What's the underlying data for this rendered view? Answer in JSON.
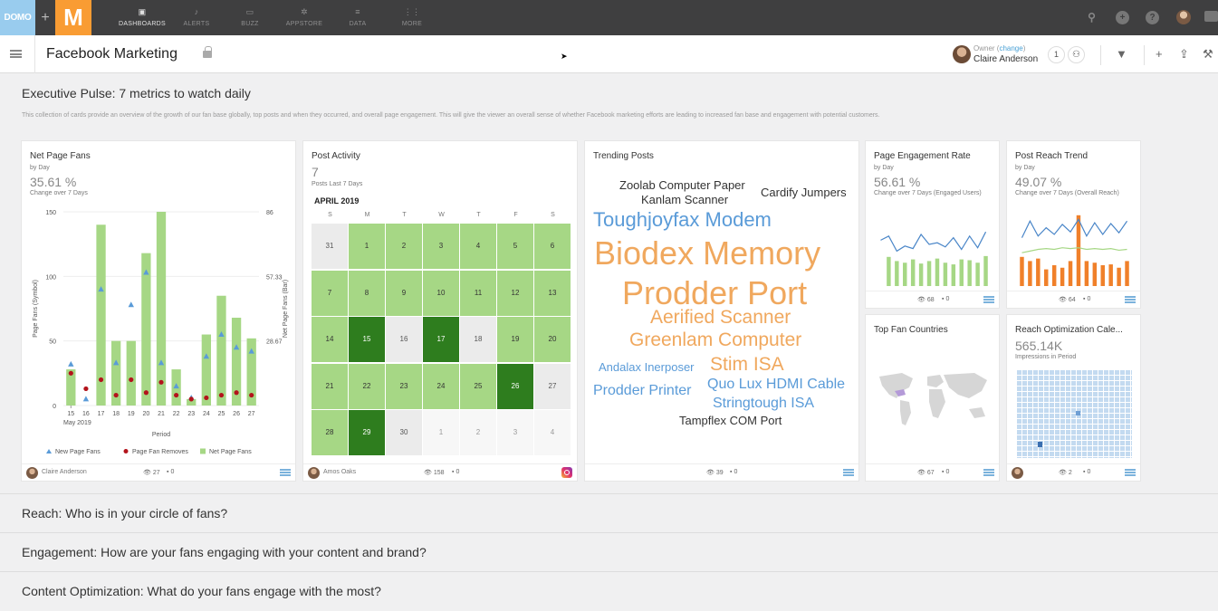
{
  "topnav": {
    "logo_text": "DOMO",
    "logo_m": "M",
    "items": [
      {
        "label": "DASHBOARDS",
        "icon": "dashboards-icon"
      },
      {
        "label": "ALERTS",
        "icon": "bell-icon"
      },
      {
        "label": "BUZZ",
        "icon": "chat-icon"
      },
      {
        "label": "APPSTORE",
        "icon": "appstore-icon"
      },
      {
        "label": "DATA",
        "icon": "database-icon"
      },
      {
        "label": "MORE",
        "icon": "grid-icon"
      }
    ]
  },
  "pagebar": {
    "title": "Facebook Marketing",
    "owner_label": "Owner",
    "owner_change": "change",
    "owner_name": "Claire Anderson",
    "share_count": "1"
  },
  "exec": {
    "title": "Executive Pulse: 7 metrics to watch daily",
    "description": "This collection of cards provide an overview of the growth of our fan base globally, top posts and when they occurred, and overall page engagement. This will give the viewer an overall sense of whether Facebook marketing efforts are leading to increased fan base and engagement with potential customers."
  },
  "cards": {
    "net_fans": {
      "title": "Net Page Fans",
      "sub": "by Day",
      "value": "35.61 %",
      "change": "Change over 7 Days",
      "owner": "Claire Anderson",
      "views": "27",
      "comments": "0"
    },
    "post_activity": {
      "title": "Post Activity",
      "value": "7",
      "sub": "Posts Last 7 Days",
      "owner": "Amos Oaks",
      "views": "158",
      "comments": "0"
    },
    "trending": {
      "title": "Trending Posts",
      "views": "39",
      "comments": "0"
    },
    "engagement": {
      "title": "Page Engagement Rate",
      "sub": "by Day",
      "value": "56.61 %",
      "change": "Change over 7 Days (Engaged Users)",
      "views": "68",
      "comments": "0"
    },
    "reach": {
      "title": "Post Reach Trend",
      "sub": "by Day",
      "value": "49.07 %",
      "change": "Change over 7 Days (Overall Reach)",
      "views": "64",
      "comments": "0"
    },
    "countries": {
      "title": "Top Fan Countries",
      "views": "67",
      "comments": "0"
    },
    "reach_cal": {
      "title": "Reach Optimization Cale...",
      "value": "565.14K",
      "sub": "Impressions in Period",
      "views": "2",
      "comments": "0"
    }
  },
  "chart_data": [
    {
      "type": "bar",
      "name_card": "Net Page Fans",
      "categories": [
        "15",
        "16",
        "17",
        "18",
        "19",
        "20",
        "21",
        "22",
        "23",
        "24",
        "25",
        "26",
        "27"
      ],
      "xlabel": "Period",
      "x_sublabel": "May 2019",
      "ylabel_left": "Page Fans (Symbol)",
      "ylabel_right": "Net Page Fans (Bar)",
      "yticks_left": [
        "0",
        "50",
        "100",
        "150"
      ],
      "yticks_right": [
        "28.67",
        "57.33",
        "86"
      ],
      "ylim": [
        0,
        150
      ],
      "series": [
        {
          "name": "Net Page Fans",
          "kind": "bar",
          "values": [
            28,
            0,
            140,
            50,
            50,
            118,
            150,
            28,
            5,
            55,
            85,
            68,
            52
          ]
        },
        {
          "name": "New Page Fans",
          "kind": "triangle",
          "values": [
            32,
            5,
            90,
            33,
            78,
            103,
            33,
            15,
            6,
            38,
            55,
            45,
            42
          ]
        },
        {
          "name": "Page Fan Removes",
          "kind": "dot",
          "values": [
            25,
            13,
            20,
            8,
            20,
            10,
            18,
            8,
            5,
            6,
            8,
            10,
            8
          ]
        }
      ],
      "legend_position": "bottom",
      "colors": {
        "bar": "#a6d785",
        "triangle": "#5a9bd8",
        "dot": "#b3131b"
      }
    },
    {
      "type": "table",
      "name_card": "Post Activity",
      "month": "APRIL 2019",
      "weekdays": [
        "S",
        "M",
        "T",
        "W",
        "T",
        "F",
        "S"
      ],
      "weeks": [
        [
          {
            "d": "31",
            "l": 0
          },
          {
            "d": "1",
            "l": 1
          },
          {
            "d": "2",
            "l": 1
          },
          {
            "d": "3",
            "l": 1
          },
          {
            "d": "4",
            "l": 1
          },
          {
            "d": "5",
            "l": 1
          },
          {
            "d": "6",
            "l": 1
          }
        ],
        [
          {
            "d": "7",
            "l": 1
          },
          {
            "d": "8",
            "l": 1
          },
          {
            "d": "9",
            "l": 1
          },
          {
            "d": "10",
            "l": 1
          },
          {
            "d": "11",
            "l": 1
          },
          {
            "d": "12",
            "l": 1
          },
          {
            "d": "13",
            "l": 1
          }
        ],
        [
          {
            "d": "14",
            "l": 1
          },
          {
            "d": "15",
            "l": 2
          },
          {
            "d": "16",
            "l": 0
          },
          {
            "d": "17",
            "l": 2
          },
          {
            "d": "18",
            "l": 0
          },
          {
            "d": "19",
            "l": 1
          },
          {
            "d": "20",
            "l": 1
          }
        ],
        [
          {
            "d": "21",
            "l": 1
          },
          {
            "d": "22",
            "l": 1
          },
          {
            "d": "23",
            "l": 1
          },
          {
            "d": "24",
            "l": 1
          },
          {
            "d": "25",
            "l": 1
          },
          {
            "d": "26",
            "l": 2
          },
          {
            "d": "27",
            "l": 0
          }
        ],
        [
          {
            "d": "28",
            "l": 1
          },
          {
            "d": "29",
            "l": 2
          },
          {
            "d": "30",
            "l": 0
          },
          {
            "d": "1",
            "l": -1
          },
          {
            "d": "2",
            "l": -1
          },
          {
            "d": "3",
            "l": -1
          },
          {
            "d": "4",
            "l": -1
          }
        ]
      ],
      "colors": {
        "light": "#a6d785",
        "dark": "#2e7d1e",
        "empty": "#ebebeb",
        "other": "#f7f7f7"
      }
    },
    {
      "type": "line",
      "name_card": "Page Engagement Rate",
      "series": [
        {
          "name": "Engaged Users",
          "kind": "line",
          "values": [
            55,
            60,
            42,
            48,
            45,
            62,
            50,
            52,
            47,
            58,
            44,
            60,
            46,
            65
          ]
        },
        {
          "name": "Daily",
          "kind": "bar",
          "values": [
            0,
            35,
            30,
            28,
            32,
            27,
            30,
            33,
            28,
            26,
            32,
            31,
            28,
            36
          ]
        }
      ],
      "colors": {
        "line": "#4a86c8",
        "bar": "#a6d785"
      }
    },
    {
      "type": "line",
      "name_card": "Post Reach Trend",
      "series": [
        {
          "name": "Reach",
          "kind": "line",
          "values": [
            58,
            78,
            60,
            70,
            62,
            74,
            65,
            80,
            60,
            76,
            62,
            75,
            64,
            78
          ]
        },
        {
          "name": "Trend",
          "kind": "line",
          "values": [
            40,
            42,
            44,
            45,
            44,
            46,
            45,
            46,
            44,
            45,
            44,
            45,
            43,
            44
          ]
        },
        {
          "name": "Daily",
          "kind": "bar",
          "values": [
            35,
            30,
            33,
            20,
            25,
            22,
            30,
            85,
            30,
            28,
            25,
            26,
            22,
            30
          ]
        }
      ],
      "colors": {
        "line": "#4a86c8",
        "trend": "#a6d785",
        "bar": "#f0802a"
      }
    }
  ],
  "word_cloud": [
    {
      "text": "Zoolab Computer Paper",
      "size": 13,
      "color": "#333"
    },
    {
      "text": "Cardify Jumpers",
      "size": 13,
      "color": "#333"
    },
    {
      "text": "Kanlam Scanner",
      "size": 13,
      "color": "#333"
    },
    {
      "text": "Toughjoyfax Modem",
      "size": 22,
      "color": "#5a9bd8"
    },
    {
      "text": "Biodex Memory",
      "size": 36,
      "color": "#f0a85e"
    },
    {
      "text": "Prodder Port",
      "size": 36,
      "color": "#f0a85e"
    },
    {
      "text": "Aerified Scanner",
      "size": 21,
      "color": "#f0a85e"
    },
    {
      "text": "Greenlam Computer",
      "size": 21,
      "color": "#f0a85e"
    },
    {
      "text": "Andalax Inerposer",
      "size": 13,
      "color": "#5a9bd8"
    },
    {
      "text": "Stim ISA",
      "size": 21,
      "color": "#f0a85e"
    },
    {
      "text": "Quo Lux HDMI Cable",
      "size": 16,
      "color": "#5a9bd8"
    },
    {
      "text": "Prodder Printer",
      "size": 16,
      "color": "#5a9bd8"
    },
    {
      "text": "Stringtough ISA",
      "size": 16,
      "color": "#5a9bd8"
    },
    {
      "text": "Tampflex COM Port",
      "size": 13,
      "color": "#333"
    }
  ],
  "sections": [
    "Reach: Who is in your circle of fans?",
    "Engagement: How are your fans engaging with your content and brand?",
    "Content Optimization: What do your fans engage with the most?"
  ]
}
